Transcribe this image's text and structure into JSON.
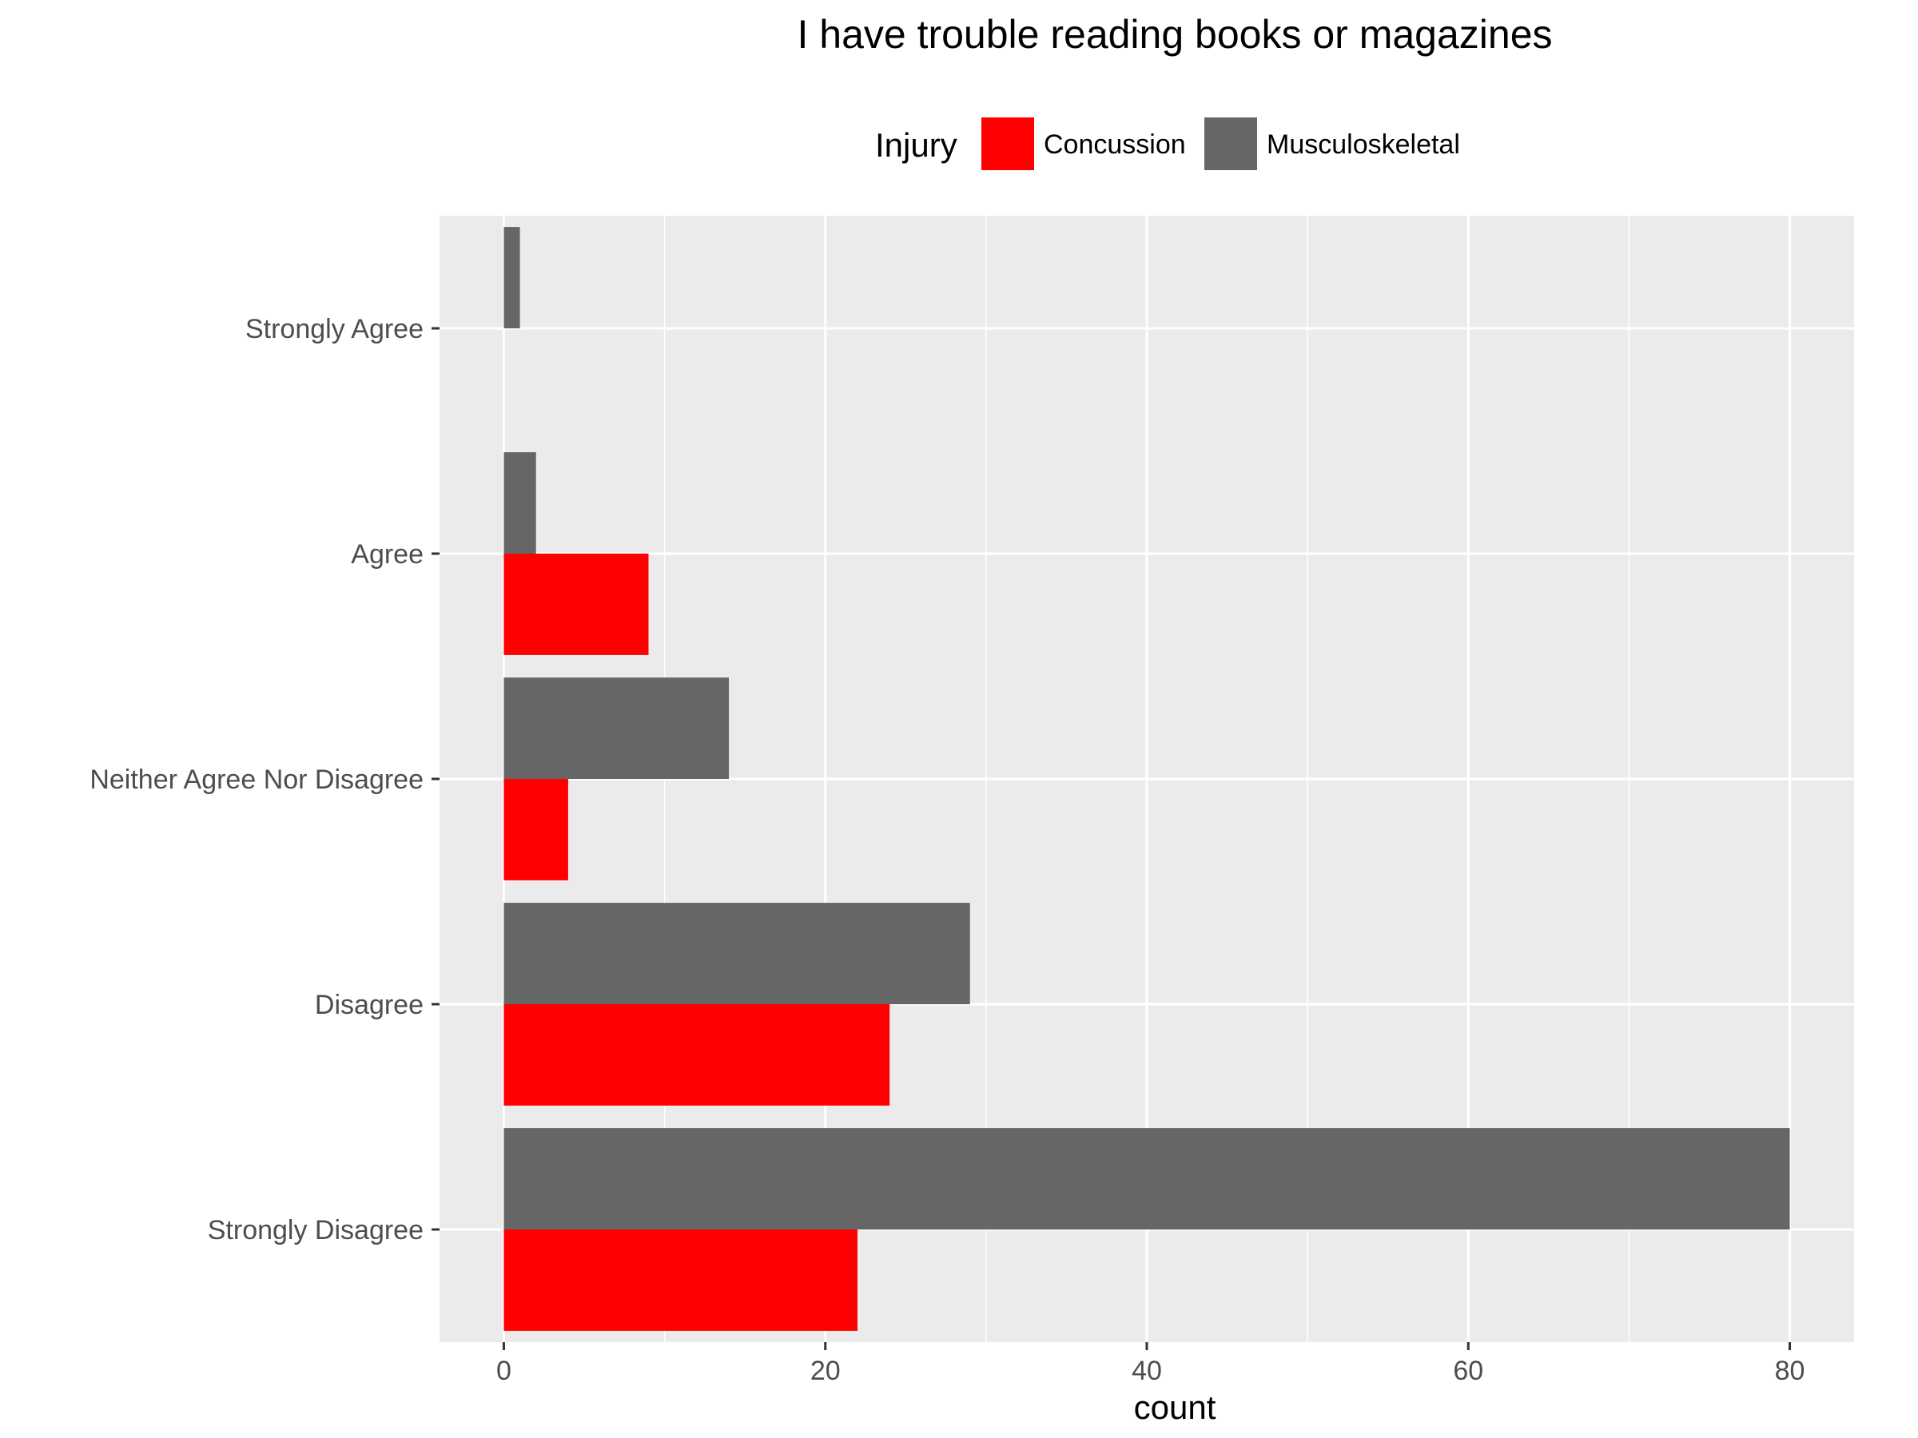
{
  "chart_data": {
    "type": "bar",
    "orientation": "horizontal",
    "title": "I have trouble reading books or magazines",
    "xlabel": "count",
    "ylabel": "",
    "categories": [
      "Strongly Agree",
      "Agree",
      "Neither Agree Nor Disagree",
      "Disagree",
      "Strongly Disagree"
    ],
    "series": [
      {
        "name": "Concussion",
        "color": "#ff0000",
        "values": [
          0,
          9,
          4,
          24,
          22
        ]
      },
      {
        "name": "Musculoskeletal",
        "color": "#666666",
        "values": [
          1,
          2,
          14,
          29,
          80
        ]
      }
    ],
    "xlim": [
      -4,
      84
    ],
    "xticks": [
      0,
      20,
      40,
      60,
      80
    ],
    "grid": true,
    "legend": {
      "title": "Injury",
      "position": "top"
    },
    "panel_background": "#ebebeb"
  }
}
